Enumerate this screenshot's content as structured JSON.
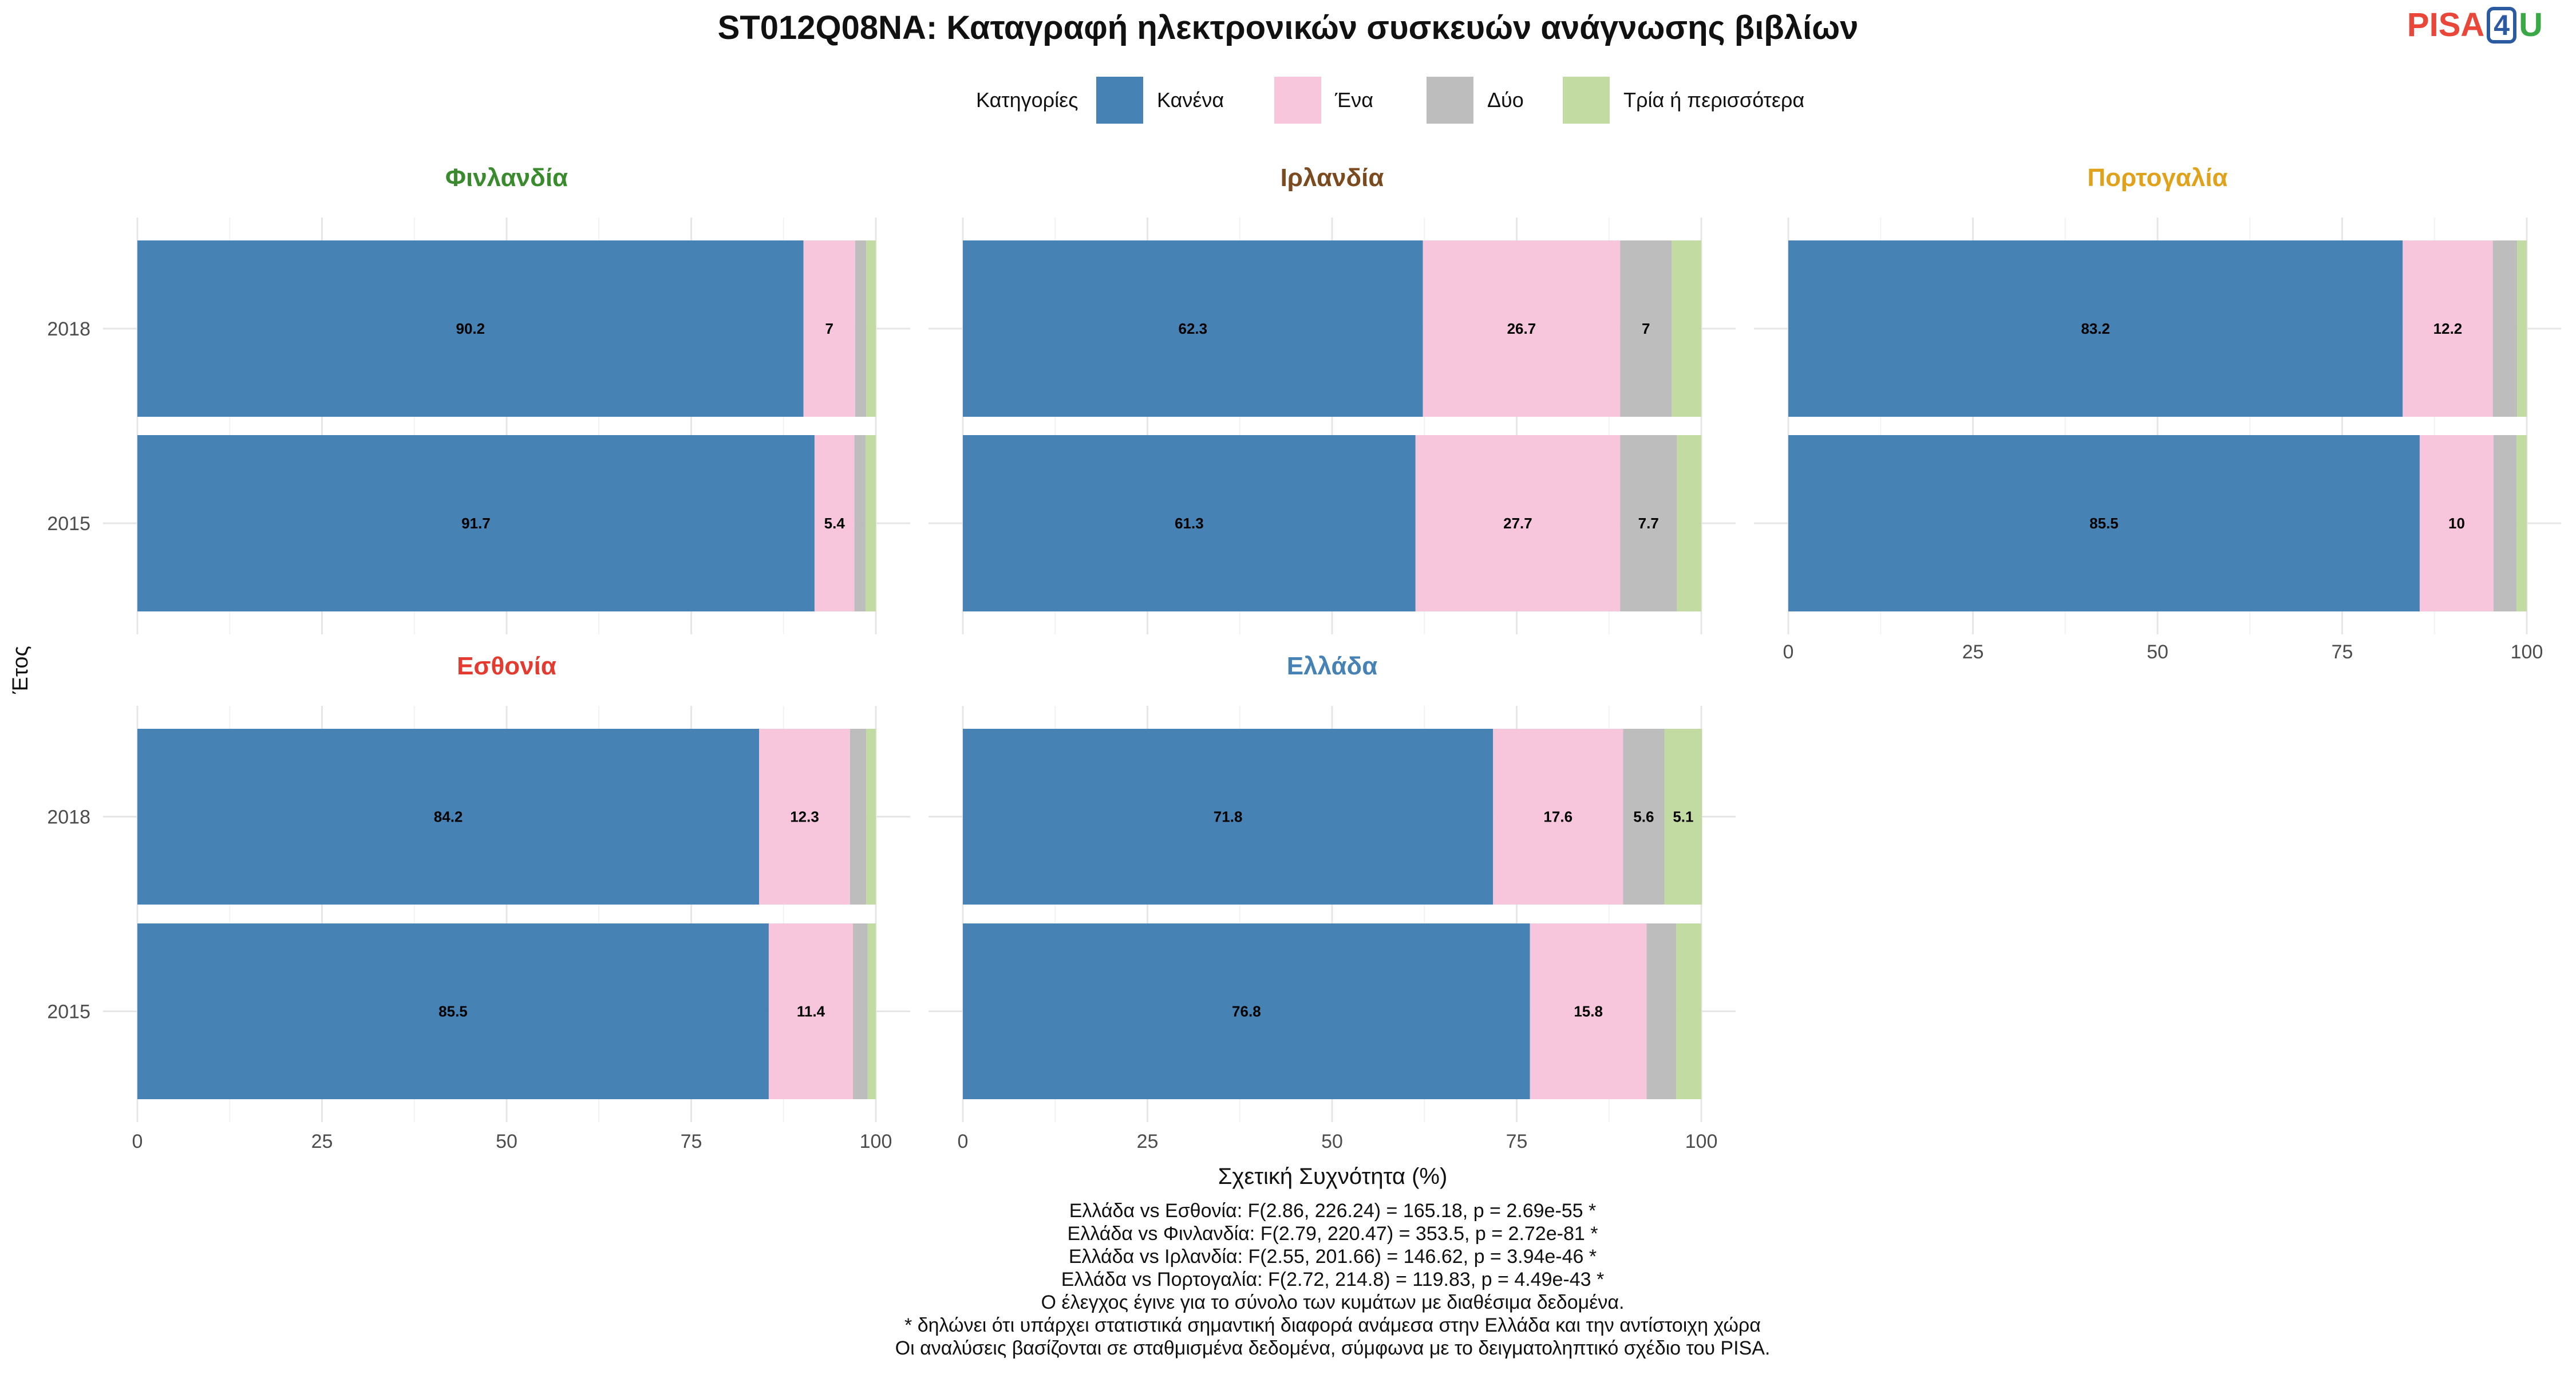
{
  "logo": {
    "text_a": "PISA",
    "text_b": "4",
    "text_c": "U"
  },
  "chart_data": {
    "type": "bar",
    "orientation": "horizontal-stacked",
    "title": "ST012Q08NA: Καταγραφή ηλεκτρονικών συσκευών ανάγνωσης βιβλίων",
    "xlabel": "Σχετική Συχνότητα (%)",
    "ylabel": "Έτος",
    "xlim": [
      0,
      100
    ],
    "xticks": [
      "0",
      "25",
      "50",
      "75",
      "100"
    ],
    "legend": {
      "title": "Κατηγορίες",
      "position": "top",
      "items": [
        {
          "name": "Κανένα",
          "color": "#4682b4"
        },
        {
          "name": "Ένα",
          "color": "#f7c6dc"
        },
        {
          "name": "Δύο",
          "color": "#bdbdbd"
        },
        {
          "name": "Τρία ή περισσότερα",
          "color": "#c2dba3"
        }
      ]
    },
    "panels": [
      {
        "country": "Φινλανδία",
        "color": "#3a8a2e",
        "years": [
          {
            "year": "2018",
            "values": [
              90.2,
              7,
              1.5,
              1.3
            ],
            "labels": [
              "90.2",
              "7",
              "",
              ""
            ]
          },
          {
            "year": "2015",
            "values": [
              91.7,
              5.4,
              1.5,
              1.4
            ],
            "labels": [
              "91.7",
              "5.4",
              "",
              ""
            ]
          }
        ]
      },
      {
        "country": "Ιρλανδία",
        "color": "#7b4a1e",
        "years": [
          {
            "year": "2018",
            "values": [
              62.3,
              26.7,
              7,
              4
            ],
            "labels": [
              "62.3",
              "26.7",
              "7",
              ""
            ]
          },
          {
            "year": "2015",
            "values": [
              61.3,
              27.7,
              7.7,
              3.3
            ],
            "labels": [
              "61.3",
              "27.7",
              "7.7",
              ""
            ]
          }
        ]
      },
      {
        "country": "Πορτογαλία",
        "color": "#e1a21b",
        "years": [
          {
            "year": "2018",
            "values": [
              83.2,
              12.2,
              3.3,
              1.3
            ],
            "labels": [
              "83.2",
              "12.2",
              "",
              ""
            ]
          },
          {
            "year": "2015",
            "values": [
              85.5,
              10,
              3.1,
              1.4
            ],
            "labels": [
              "85.5",
              "10",
              "",
              ""
            ]
          }
        ]
      },
      {
        "country": "Εσθονία",
        "color": "#e33b2f",
        "years": [
          {
            "year": "2018",
            "values": [
              84.2,
              12.3,
              2.2,
              1.3
            ],
            "labels": [
              "84.2",
              "12.3",
              "",
              ""
            ]
          },
          {
            "year": "2015",
            "values": [
              85.5,
              11.4,
              2.0,
              1.1
            ],
            "labels": [
              "85.5",
              "11.4",
              "",
              ""
            ]
          }
        ]
      },
      {
        "country": "Ελλάδα",
        "color": "#4682b4",
        "years": [
          {
            "year": "2018",
            "values": [
              71.8,
              17.6,
              5.6,
              5.1
            ],
            "labels": [
              "71.8",
              "17.6",
              "5.6",
              "5.1"
            ]
          },
          {
            "year": "2015",
            "values": [
              76.8,
              15.8,
              4.0,
              3.4
            ],
            "labels": [
              "76.8",
              "15.8",
              "",
              ""
            ]
          }
        ]
      }
    ],
    "footnotes": [
      "Ελλάδα vs Εσθονία: F(2.86, 226.24) = 165.18, p = 2.69e-55 *",
      "Ελλάδα vs Φινλανδία: F(2.79, 220.47) = 353.5, p = 2.72e-81 *",
      "Ελλάδα vs Ιρλανδία: F(2.55, 201.66) = 146.62, p = 3.94e-46 *",
      "Ελλάδα vs Πορτογαλία: F(2.72, 214.8) = 119.83, p = 4.49e-43 *",
      "Ο έλεγχος έγινε για το σύνολο των κυμάτων με διαθέσιμα δεδομένα.",
      "* δηλώνει ότι υπάρχει στατιστικά σημαντική διαφορά ανάμεσα στην Ελλάδα και την αντίστοιχη χώρα",
      "Οι αναλύσεις βασίζονται σε σταθμισμένα δεδομένα, σύμφωνα με το δειγματοληπτικό σχέδιο του PISA."
    ]
  }
}
